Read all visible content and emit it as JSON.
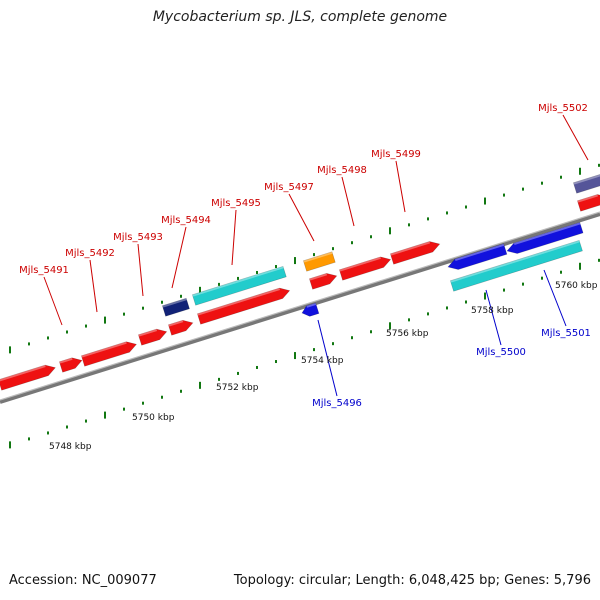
{
  "title": "Mycobacterium sp. JLS, complete genome",
  "footer": {
    "accession": "Accession: NC_009077",
    "summary": "Topology: circular; Length: 6,048,425 bp; Genes: 5,796"
  },
  "colors": {
    "forward_cds": "#ee1111",
    "reverse_cds": "#1111dd",
    "cyan": "#22cccc",
    "orange": "#ff9900",
    "navy": "#112277",
    "slate": "#555599",
    "label_forward": "#cc0000",
    "label_reverse": "#0000cc",
    "tick": "#117711",
    "backbone": "#888888"
  },
  "scale_labels": [
    "5748 kbp",
    "5750 kbp",
    "5752 kbp",
    "5754 kbp",
    "5756 kbp",
    "5758 kbp",
    "5760 kbp"
  ],
  "genes": [
    {
      "name": "Mjls_5491",
      "strand": "forward"
    },
    {
      "name": "Mjls_5492",
      "strand": "forward"
    },
    {
      "name": "Mjls_5493",
      "strand": "forward"
    },
    {
      "name": "Mjls_5494",
      "strand": "forward"
    },
    {
      "name": "Mjls_5495",
      "strand": "forward"
    },
    {
      "name": "Mjls_5496",
      "strand": "reverse"
    },
    {
      "name": "Mjls_5497",
      "strand": "forward"
    },
    {
      "name": "Mjls_5498",
      "strand": "forward"
    },
    {
      "name": "Mjls_5499",
      "strand": "forward"
    },
    {
      "name": "Mjls_5500",
      "strand": "reverse"
    },
    {
      "name": "Mjls_5501",
      "strand": "reverse"
    },
    {
      "name": "Mjls_5502",
      "strand": "forward"
    }
  ]
}
